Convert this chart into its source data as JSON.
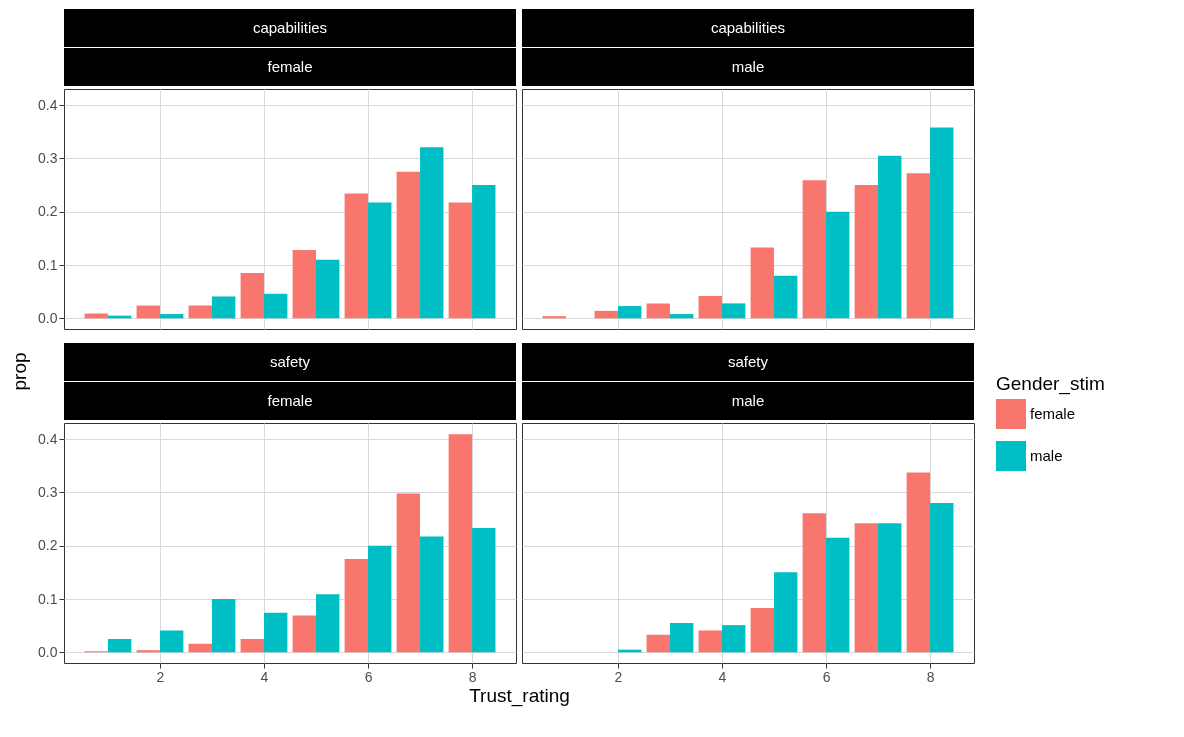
{
  "chart_data": [
    {
      "type": "bar",
      "title": "capabilities",
      "subtitle": "female",
      "x": [
        1,
        2,
        3,
        4,
        5,
        6,
        7,
        8
      ],
      "xlim": [
        0.155,
        8.845
      ],
      "xticks": [
        2,
        4,
        6,
        8
      ],
      "ylim": [
        -0.02,
        0.43
      ],
      "yticks": [
        {
          "value": 0,
          "label": "0.0"
        },
        {
          "value": 0.1,
          "label": "0.1"
        },
        {
          "value": 0.2,
          "label": "0.2"
        },
        {
          "value": 0.3,
          "label": "0.3"
        },
        {
          "value": 0.4,
          "label": "0.4"
        }
      ],
      "grid": true,
      "tick_labels": "y",
      "legend": "right",
      "legend_title": "Gender_stim",
      "series": [
        {
          "name": "female",
          "color": "#f8766d",
          "values": [
            0.009,
            0.024,
            0.024,
            0.085,
            0.128,
            0.234,
            0.275,
            0.217
          ]
        },
        {
          "name": "male",
          "color": "#00bfc4",
          "values": [
            0.005,
            0.008,
            0.041,
            0.046,
            0.11,
            0.217,
            0.321,
            0.25
          ]
        }
      ]
    },
    {
      "type": "bar",
      "title": "capabilities",
      "subtitle": "male",
      "x": [
        1,
        2,
        3,
        4,
        5,
        6,
        7,
        8
      ],
      "xlim": [
        0.155,
        8.845
      ],
      "xticks": [
        2,
        4,
        6,
        8
      ],
      "ylim": [
        -0.02,
        0.43
      ],
      "yticks": [
        0,
        0.1,
        0.2,
        0.3,
        0.4
      ],
      "grid": true,
      "tick_labels": false,
      "series": [
        {
          "color": "#f8766d",
          "values": [
            0.004,
            0.014,
            0.028,
            0.042,
            0.133,
            0.259,
            0.25,
            0.272
          ]
        },
        {
          "color": "#00bfc4",
          "values": [
            null,
            0.023,
            0.008,
            0.028,
            0.08,
            0.2,
            0.305,
            0.358
          ]
        }
      ]
    },
    {
      "type": "bar",
      "title": "safety",
      "subtitle": "female",
      "xlabel": "Trust_rating",
      "ylabel": "prop",
      "x": [
        1,
        2,
        3,
        4,
        5,
        6,
        7,
        8
      ],
      "xlim": [
        0.155,
        8.845
      ],
      "xticks": [
        2,
        4,
        6,
        8
      ],
      "ylim": [
        -0.02,
        0.43
      ],
      "yticks": [
        {
          "value": 0,
          "label": "0.0"
        },
        {
          "value": 0.1,
          "label": "0.1"
        },
        {
          "value": 0.2,
          "label": "0.2"
        },
        {
          "value": 0.3,
          "label": "0.3"
        },
        {
          "value": 0.4,
          "label": "0.4"
        }
      ],
      "grid": true,
      "series": [
        {
          "color": "#f8766d",
          "values": [
            0.002,
            0.004,
            0.016,
            0.025,
            0.069,
            0.175,
            0.298,
            0.409
          ]
        },
        {
          "color": "#00bfc4",
          "values": [
            0.025,
            0.041,
            0.1,
            0.074,
            0.109,
            0.2,
            0.217,
            0.233
          ]
        }
      ]
    },
    {
      "type": "bar",
      "title": "safety",
      "subtitle": "male",
      "x": [
        2,
        3,
        4,
        5,
        6,
        7,
        8
      ],
      "xlim": [
        0.155,
        8.845
      ],
      "xticks": [
        2,
        4,
        6,
        8
      ],
      "ylim": [
        -0.02,
        0.43
      ],
      "yticks": [
        0,
        0.1,
        0.2,
        0.3,
        0.4
      ],
      "grid": true,
      "tick_labels": "x",
      "series": [
        {
          "color": "#f8766d",
          "values": [
            null,
            0.033,
            0.041,
            0.083,
            0.261,
            0.242,
            0.337
          ]
        },
        {
          "color": "#00bfc4",
          "values": [
            0.005,
            0.055,
            0.051,
            0.15,
            0.215,
            0.242,
            0.28
          ]
        }
      ]
    }
  ]
}
